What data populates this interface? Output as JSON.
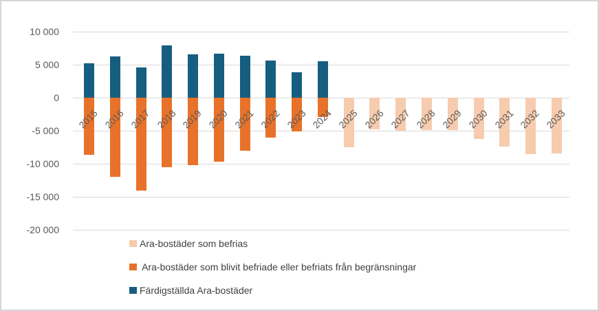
{
  "colors": {
    "background": "#FFFFFF",
    "border": "#D5D5D5",
    "gridline": "#D9D9D9",
    "axis_text": "#595959",
    "legend_text": "#3F3F3F",
    "series_befrias": "#F6CBAE",
    "series_befriade": "#E8722A",
    "series_fardigstallda": "#165E80"
  },
  "chart_data": {
    "type": "bar",
    "title": "",
    "xlabel": "",
    "ylabel": "",
    "grid": "horizontal",
    "legend_position": "bottom-left",
    "ylim": [
      -20000,
      10000
    ],
    "y_tick_values": [
      10000,
      5000,
      0,
      -5000,
      -10000,
      -15000,
      -20000
    ],
    "y_tick_labels": [
      "10 000",
      "5 000",
      "0",
      "-5 000",
      "-10 000",
      "-15 000",
      "-20 000"
    ],
    "categories": [
      "2015",
      "2016",
      "2017",
      "2018",
      "2019",
      "2020",
      "2021",
      "2022",
      "2023",
      "2024",
      "2025",
      "2026",
      "2027",
      "2028",
      "2029",
      "2030",
      "2031",
      "2032",
      "2033"
    ],
    "series": [
      {
        "key": "befrias",
        "name": "Ara-bostäder som befrias",
        "color": "#F6CBAE",
        "values": [
          null,
          null,
          null,
          null,
          null,
          null,
          null,
          null,
          null,
          null,
          -7500,
          -4750,
          -4950,
          -4900,
          -4900,
          -6200,
          -7400,
          -8500,
          -8400
        ]
      },
      {
        "key": "befriade",
        "name": " Ara-bostäder som blivit befriade eller befriats från begränsningar",
        "color": "#E8722A",
        "values": [
          -8600,
          -11900,
          -14000,
          -10500,
          -10200,
          -9700,
          -8000,
          -6000,
          -5100,
          -2900,
          null,
          null,
          null,
          null,
          null,
          null,
          null,
          null,
          null
        ]
      },
      {
        "key": "fardigstallda",
        "name": "Färdigställda Ara-bostäder",
        "color": "#165E80",
        "values": [
          5200,
          6250,
          4650,
          7900,
          6600,
          6750,
          6350,
          5700,
          3850,
          5600,
          null,
          null,
          null,
          null,
          null,
          null,
          null,
          null,
          null
        ]
      }
    ]
  }
}
